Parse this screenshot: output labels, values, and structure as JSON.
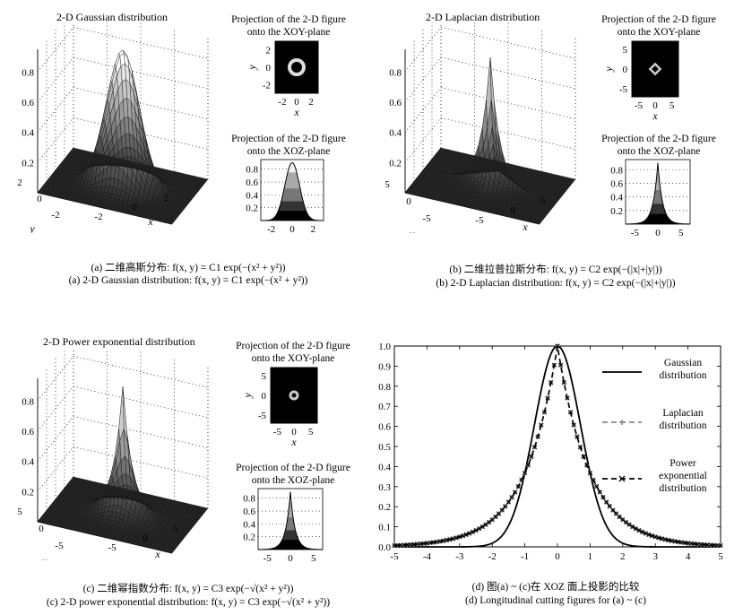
{
  "panels": [
    {
      "id": "a",
      "title": "2-D Gaussian distribution",
      "xoy_title_1": "Projection of the 2-D figure",
      "xoy_title_2": "onto the XOY-plane",
      "xoz_title_1": "Projection of the 2-D figure",
      "xoz_title_2": "onto the XOZ-plane",
      "cap_cn": "(a) 二维高斯分布: f(x, y) = C1 exp(−(x² + y²))",
      "cap_en": "(a) 2-D Gaussian distribution: f(x, y) = C1 exp(−(x² + y²))"
    },
    {
      "id": "b",
      "title": "2-D Laplacian distribution",
      "xoy_title_1": "Projection of the 2-D figure",
      "xoy_title_2": "onto the XOY-plane",
      "xoz_title_1": "Projection of the 2-D figure",
      "xoz_title_2": "onto the XOZ-plane",
      "cap_cn": "(b) 二维拉普拉斯分布: f(x, y) = C2 exp(−(|x|+|y|))",
      "cap_en": "(b) 2-D Laplacian distribution: f(x, y) = C2 exp(−(|x|+|y|))"
    },
    {
      "id": "c",
      "title": "2-D Power exponential distribution",
      "xoy_title_1": "Projection of the 2-D figure",
      "xoy_title_2": "onto the XOY-plane",
      "xoz_title_1": "Projection of the 2-D figure",
      "xoz_title_2": "onto the XOZ-plane",
      "cap_cn": "(c) 二维幂指数分布: f(x, y) = C3 exp(−√(x² + y²))",
      "cap_en": "(c) 2-D power exponential distribution: f(x, y) = C3 exp(−√(x² + y²))"
    }
  ],
  "caption_d_cn": "(d) 图(a) ~ (c)在 XOZ 面上投影的比较",
  "caption_d_en": "(d) Longitudinal cutting figures for (a) ~ (c)",
  "chart_data": {
    "type": "line",
    "xlim": [
      -5,
      5
    ],
    "ylim": [
      0,
      1.0
    ],
    "xticks": [
      -5,
      -4,
      -3,
      -2,
      -1,
      0,
      1,
      2,
      3,
      4,
      5
    ],
    "yticks": [
      0,
      0.1,
      0.2,
      0.3,
      0.4,
      0.5,
      0.6,
      0.7,
      0.8,
      0.9,
      1.0
    ],
    "series": [
      {
        "name": "Gaussian distribution",
        "name_1": "Gaussian",
        "name_2": "distribution",
        "function": "exp(-x^2)",
        "style": "solid",
        "color": "#000000"
      },
      {
        "name": "Laplacian distribution",
        "name_1": "Laplacian",
        "name_2": "distribution",
        "function": "exp(-|x|)",
        "style": "dash-plus",
        "color": "#8a8a8a"
      },
      {
        "name": "Power exponential distribution",
        "name_1": "Power",
        "name_2": "exponential",
        "name_3": "distribution",
        "function": "exp(-|x|)",
        "style": "dash-x",
        "color": "#000000"
      }
    ]
  }
}
